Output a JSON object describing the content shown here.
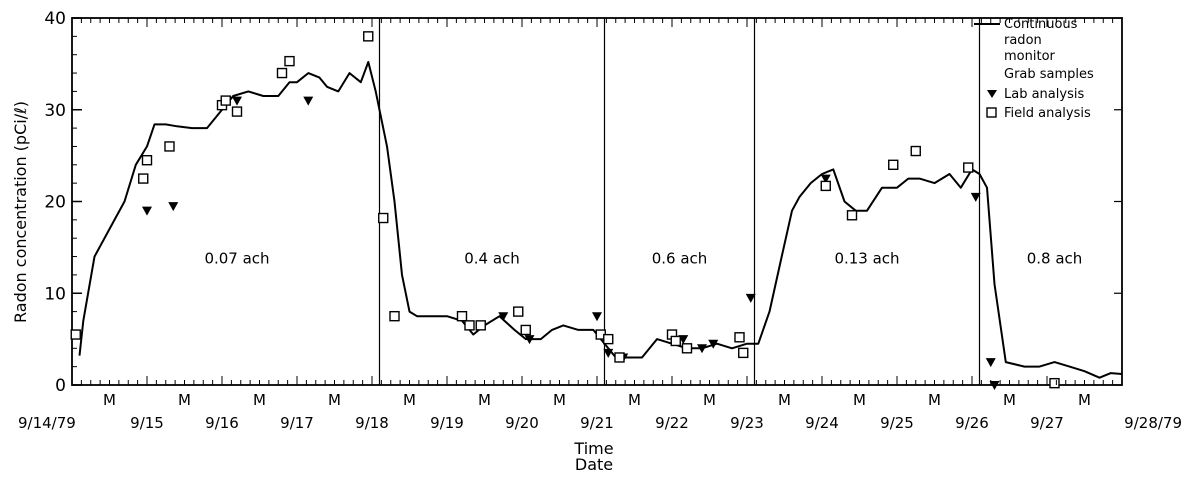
{
  "chart_data": {
    "type": "scatter",
    "ylabel": "Radon concentration (pCi/ℓ)",
    "xlabel": "Time",
    "xlabel2": "Date",
    "ylim": [
      0,
      40
    ],
    "yticks": [
      0,
      10,
      20,
      30,
      40
    ],
    "xlim": [
      0,
      14
    ],
    "grid": false,
    "legend_position": "right",
    "date_ticks": [
      {
        "x": 0,
        "label": "9/14/79"
      },
      {
        "x": 1,
        "label": "9/15"
      },
      {
        "x": 2,
        "label": "9/16"
      },
      {
        "x": 3,
        "label": "9/17"
      },
      {
        "x": 4,
        "label": "9/18"
      },
      {
        "x": 5,
        "label": "9/19"
      },
      {
        "x": 6,
        "label": "9/20"
      },
      {
        "x": 7,
        "label": "9/21"
      },
      {
        "x": 8,
        "label": "9/22"
      },
      {
        "x": 9,
        "label": "9/23"
      },
      {
        "x": 10,
        "label": "9/24"
      },
      {
        "x": 11,
        "label": "9/25"
      },
      {
        "x": 12,
        "label": "9/26"
      },
      {
        "x": 13,
        "label": "9/27"
      },
      {
        "x": 14,
        "label": "9/28/79"
      }
    ],
    "midday_label": "M",
    "midday_x": [
      0.5,
      1.5,
      2.5,
      3.5,
      4.5,
      5.5,
      6.5,
      7.5,
      8.5,
      9.5,
      10.5,
      11.5,
      12.5,
      13.5
    ],
    "dividers": [
      4.1,
      7.1,
      9.1,
      12.1
    ],
    "regions": [
      {
        "label": "0.07 ach",
        "x": 2.2,
        "y": 20
      },
      {
        "label": "0.4 ach",
        "x": 5.6,
        "y": 20
      },
      {
        "label": "0.6 ach",
        "x": 8.1,
        "y": 20
      },
      {
        "label": "0.13 ach",
        "x": 10.6,
        "y": 20
      },
      {
        "label": "0.8 ach",
        "x": 13.1,
        "y": 20
      }
    ],
    "legend": {
      "line_label": [
        "Continuous",
        "radon",
        "monitor"
      ],
      "heading": "Grab samples",
      "lab_label": "Lab analysis",
      "field_label": "Field analysis"
    },
    "series": [
      {
        "name": "Continuous radon monitor",
        "kind": "line",
        "x": [
          0.1,
          0.15,
          0.3,
          0.5,
          0.7,
          0.85,
          1.0,
          1.1,
          1.25,
          1.4,
          1.6,
          1.8,
          2.0,
          2.15,
          2.35,
          2.55,
          2.75,
          2.9,
          3.0,
          3.15,
          3.3,
          3.4,
          3.55,
          3.7,
          3.85,
          3.95,
          4.05,
          4.2,
          4.3,
          4.4,
          4.5,
          4.6,
          4.8,
          5.0,
          5.2,
          5.35,
          5.5,
          5.7,
          5.9,
          6.05,
          6.25,
          6.4,
          6.55,
          6.75,
          6.95,
          7.05,
          7.25,
          7.4,
          7.6,
          7.8,
          8.0,
          8.2,
          8.4,
          8.6,
          8.8,
          9.0,
          9.15,
          9.3,
          9.45,
          9.6,
          9.7,
          9.85,
          10.0,
          10.15,
          10.3,
          10.45,
          10.6,
          10.8,
          11.0,
          11.15,
          11.3,
          11.5,
          11.7,
          11.85,
          12.0,
          12.1,
          12.2,
          12.3,
          12.45,
          12.7,
          12.9,
          13.1,
          13.3,
          13.5,
          13.7,
          13.85,
          14.0
        ],
        "y": [
          3.2,
          7,
          14,
          17,
          20,
          24,
          26,
          28.4,
          28.4,
          28.2,
          28,
          28,
          30,
          31.5,
          32,
          31.5,
          31.5,
          33,
          33,
          34,
          33.5,
          32.5,
          32,
          34,
          33,
          35.2,
          32,
          26,
          20,
          12,
          8,
          7.5,
          7.5,
          7.5,
          7,
          5.5,
          6.5,
          7.5,
          6,
          5,
          5,
          6,
          6.5,
          6,
          6,
          5,
          3,
          3,
          3,
          5,
          4.5,
          4,
          4,
          4.5,
          4,
          4.5,
          4.5,
          8,
          13.5,
          19,
          20.5,
          22,
          23,
          23.5,
          20,
          19,
          19,
          21.5,
          21.5,
          22.5,
          22.5,
          22,
          23,
          21.5,
          23.5,
          23,
          21.5,
          11,
          2.5,
          2,
          2,
          2.5,
          2,
          1.5,
          0.8,
          1.3,
          1.2
        ]
      },
      {
        "name": "Lab analysis",
        "kind": "triangle",
        "x": [
          1.0,
          1.35,
          2.2,
          3.15,
          5.75,
          6.1,
          7.0,
          7.15,
          7.35,
          8.15,
          8.4,
          8.55,
          9.05,
          10.05,
          12.05,
          12.25,
          12.3
        ],
        "y": [
          19,
          19.5,
          31,
          31,
          7.5,
          5,
          7.5,
          3.5,
          3,
          5,
          4,
          4.5,
          9.5,
          22.5,
          20.5,
          2.5,
          0
        ]
      },
      {
        "name": "Field analysis",
        "kind": "square",
        "x": [
          0.05,
          0.95,
          1.0,
          1.3,
          2.0,
          2.05,
          2.2,
          2.8,
          2.9,
          3.95,
          4.15,
          4.3,
          5.2,
          5.3,
          5.45,
          5.95,
          6.05,
          7.05,
          7.15,
          7.3,
          8.0,
          8.05,
          8.2,
          8.9,
          8.95,
          10.05,
          10.4,
          10.95,
          11.25,
          11.95,
          13.1
        ],
        "y": [
          5.5,
          22.5,
          24.5,
          26,
          30.5,
          31,
          29.8,
          34,
          35.3,
          38,
          18.2,
          7.5,
          7.5,
          6.5,
          6.5,
          8,
          6,
          5.5,
          5,
          3,
          5.5,
          4.8,
          4,
          5.2,
          3.5,
          21.7,
          18.5,
          24,
          25.5,
          23.7,
          0.2
        ]
      }
    ]
  }
}
